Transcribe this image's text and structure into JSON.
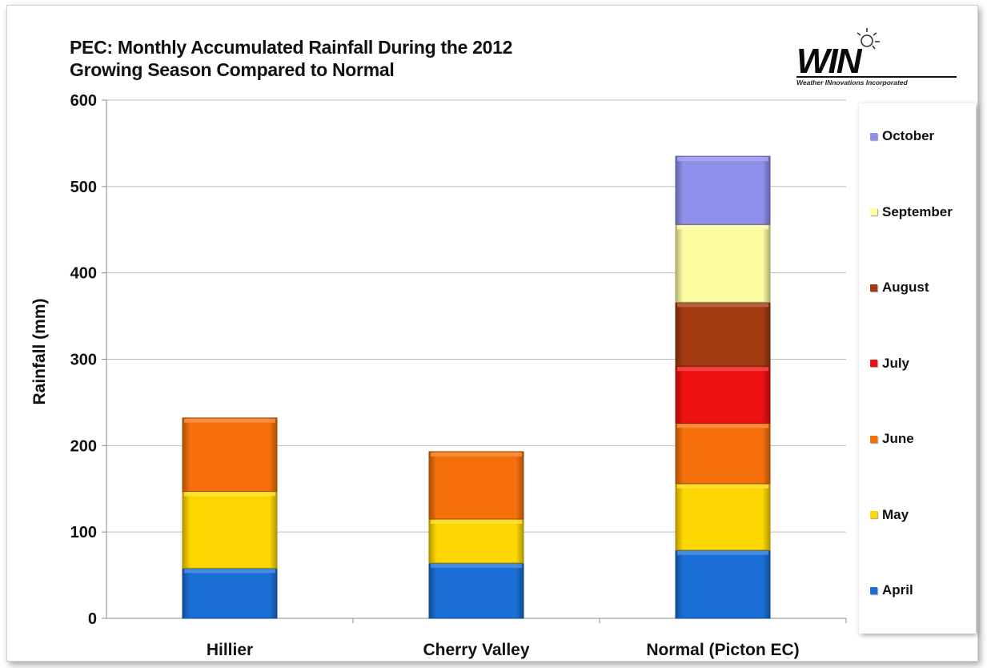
{
  "chart_data": {
    "type": "bar",
    "stacked": true,
    "title": "PEC: Monthly Accumulated Rainfall During the 2012 Growing Season Compared to Normal",
    "title_lines": [
      "PEC: Monthly Accumulated Rainfall During the 2012",
      "Growing Season Compared to Normal"
    ],
    "xlabel": "",
    "ylabel": "Rainfall (mm)",
    "ylim": [
      0,
      600
    ],
    "yticks": [
      0,
      100,
      200,
      300,
      400,
      500,
      600
    ],
    "grid": true,
    "legend_position": "right",
    "categories": [
      "Hillier",
      "Cherry Valley",
      "Normal (Picton EC)"
    ],
    "series": [
      {
        "name": "April",
        "color": "#1a6fd6",
        "values": [
          58,
          64,
          79
        ]
      },
      {
        "name": "May",
        "color": "#ffd700",
        "values": [
          89,
          51,
          77
        ]
      },
      {
        "name": "June",
        "color": "#f5700a",
        "values": [
          85,
          78,
          70
        ]
      },
      {
        "name": "July",
        "color": "#ee1111",
        "values": [
          0,
          0,
          66
        ]
      },
      {
        "name": "August",
        "color": "#a33a10",
        "values": [
          0,
          0,
          74
        ]
      },
      {
        "name": "September",
        "color": "#fbfba0",
        "values": [
          0,
          0,
          90
        ]
      },
      {
        "name": "October",
        "color": "#8f8fec",
        "values": [
          0,
          0,
          79
        ]
      }
    ]
  },
  "logo": {
    "text": "WIN",
    "subtitle": "Weather INnovations Incorporated"
  }
}
